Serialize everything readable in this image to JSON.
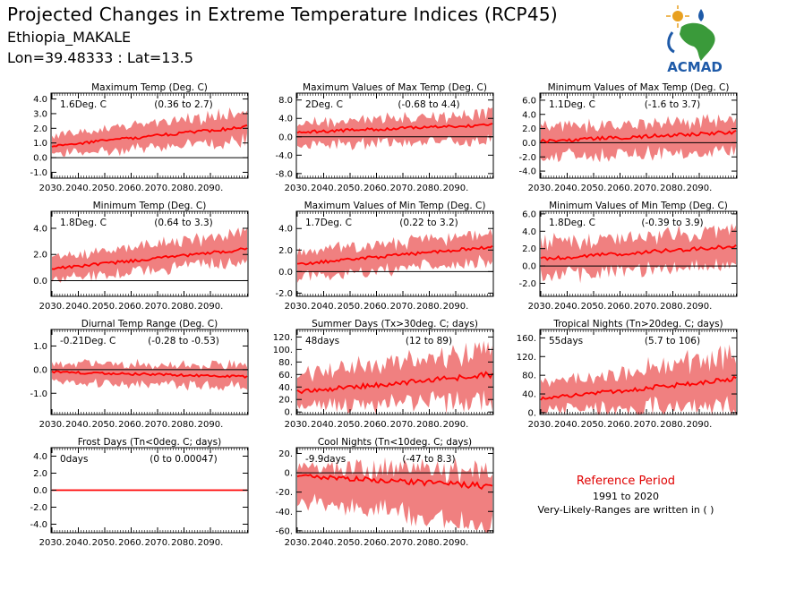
{
  "header": {
    "title": "Projected Changes in Extreme Temperature Indices (RCP45)",
    "location": "Ethiopia_MAKALE",
    "coordinates": "Lon=39.48333 : Lat=13.5"
  },
  "logo": {
    "text": "ACMAD",
    "icon": "africa-map-logo-icon"
  },
  "reference": {
    "title": "Reference Period",
    "years": "1991 to 2020",
    "note": "Very-Likely-Ranges are written in ( )"
  },
  "colors": {
    "band": "#f08080",
    "line": "#ff0000",
    "logo_blue": "#1e5aa8",
    "logo_green": "#3a9a3a",
    "logo_gold": "#e8a020"
  },
  "chart_data": [
    {
      "type": "area",
      "title": "Maximum Temp (Deg. C)",
      "stat": "1.6Deg. C",
      "range_text": "(0.36 to 2.7)",
      "x_ticks": [
        "2030.",
        "2040.",
        "2050.",
        "2060.",
        "2070.",
        "2080.",
        "2090."
      ],
      "y_ticks": [
        "4.0",
        "3.0",
        "2.0",
        "1.0",
        "0.0",
        "-1.0"
      ],
      "ylim": [
        -1.4,
        4.4
      ],
      "zero_line": 0,
      "median_start": 0.8,
      "median_end": 2.1,
      "low_start": 0.2,
      "low_end": 1.2,
      "high_start": 1.5,
      "high_end": 3.1
    },
    {
      "type": "area",
      "title": "Maximum Values of Max Temp (Deg. C)",
      "stat": "2Deg. C",
      "range_text": "(-0.68 to 4.4)",
      "x_ticks": [
        "2030.",
        "2040.",
        "2050.",
        "2060.",
        "2070.",
        "2080.",
        "2090."
      ],
      "y_ticks": [
        "8.0",
        "4.0",
        "0.0",
        "-4.0",
        "-8.0"
      ],
      "ylim": [
        -9,
        9.5
      ],
      "zero_line": 0,
      "median_start": 1.0,
      "median_end": 2.6,
      "low_start": -2.0,
      "low_end": -0.5,
      "high_start": 3.0,
      "high_end": 5.0
    },
    {
      "type": "area",
      "title": "Minimum Values of Max Temp (Deg. C)",
      "stat": "1.1Deg. C",
      "range_text": "(-1.6 to 3.7)",
      "x_ticks": [
        "2030.",
        "2040.",
        "2050.",
        "2060.",
        "2070.",
        "2080.",
        "2090."
      ],
      "y_ticks": [
        "6.0",
        "4.0",
        "2.0",
        "0.0",
        "-2.0",
        "-4.0"
      ],
      "ylim": [
        -5,
        7
      ],
      "zero_line": 0,
      "median_start": 0.2,
      "median_end": 1.5,
      "low_start": -2.0,
      "low_end": -1.0,
      "high_start": 2.0,
      "high_end": 3.5
    },
    {
      "type": "area",
      "title": "Minimum Temp (Deg. C)",
      "stat": "1.8Deg. C",
      "range_text": "(0.64 to 3.3)",
      "x_ticks": [
        "2030.",
        "2040.",
        "2050.",
        "2060.",
        "2070.",
        "2080.",
        "2090."
      ],
      "y_ticks": [
        "4.0",
        "2.0",
        "0.0"
      ],
      "ylim": [
        -1.2,
        5.3
      ],
      "zero_line": 0,
      "median_start": 0.9,
      "median_end": 2.4,
      "low_start": 0.1,
      "low_end": 1.5,
      "high_start": 1.8,
      "high_end": 3.6
    },
    {
      "type": "area",
      "title": "Maximum Values of Min Temp (Deg. C)",
      "stat": "1.7Deg. C",
      "range_text": "(0.22 to 3.2)",
      "x_ticks": [
        "2030.",
        "2040.",
        "2050.",
        "2060.",
        "2070.",
        "2080.",
        "2090."
      ],
      "y_ticks": [
        "4.0",
        "2.0",
        "0.0",
        "-2.0"
      ],
      "ylim": [
        -2.3,
        5.6
      ],
      "zero_line": 0,
      "median_start": 0.7,
      "median_end": 2.3,
      "low_start": -0.6,
      "low_end": 1.0,
      "high_start": 1.8,
      "high_end": 3.5
    },
    {
      "type": "area",
      "title": "Minimum Values of Min Temp (Deg. C)",
      "stat": "1.8Deg. C",
      "range_text": "(-0.39 to 3.9)",
      "x_ticks": [
        "2030.",
        "2040.",
        "2050.",
        "2060.",
        "2070.",
        "2080.",
        "2090."
      ],
      "y_ticks": [
        "6.0",
        "4.0",
        "2.0",
        "0.0",
        "-2.0"
      ],
      "ylim": [
        -3.5,
        6.3
      ],
      "zero_line": 0,
      "median_start": 0.8,
      "median_end": 2.3,
      "low_start": -1.2,
      "low_end": 0.5,
      "high_start": 2.6,
      "high_end": 4.2
    },
    {
      "type": "area",
      "title": "Diurnal Temp Range (Deg. C)",
      "stat": "-0.21Deg. C",
      "range_text": "(-0.28 to -0.53)",
      "x_ticks": [
        "2030.",
        "2040.",
        "2050.",
        "2060.",
        "2070.",
        "2080.",
        "2090."
      ],
      "y_ticks": [
        "1.0",
        "0.0",
        "-1.0"
      ],
      "ylim": [
        -1.9,
        1.7
      ],
      "zero_line": 0,
      "median_start": -0.1,
      "median_end": -0.3,
      "low_start": -0.5,
      "low_end": -0.7,
      "high_start": 0.3,
      "high_end": 0.2
    },
    {
      "type": "area",
      "title": "Summer Days (Tx>30deg. C; days)",
      "stat": "48days",
      "range_text": "(12 to 89)",
      "x_ticks": [
        "2030.",
        "2040.",
        "2050.",
        "2060.",
        "2070.",
        "2080.",
        "2090."
      ],
      "y_ticks": [
        "120.",
        "100.",
        "80.",
        "60.",
        "40.",
        "20.",
        "0."
      ],
      "ylim": [
        -4,
        132
      ],
      "zero_line": null,
      "median_start": 32,
      "median_end": 60,
      "low_start": 8,
      "low_end": 20,
      "high_start": 60,
      "high_end": 100
    },
    {
      "type": "area",
      "title": "Tropical Nights (Tn>20deg. C; days)",
      "stat": "55days",
      "range_text": "(5.7 to 106)",
      "x_ticks": [
        "2030.",
        "2040.",
        "2050.",
        "2060.",
        "2070.",
        "2080.",
        "2090."
      ],
      "y_ticks": [
        "160.",
        "120.",
        "80.",
        "40.",
        "0."
      ],
      "ylim": [
        -4,
        178
      ],
      "zero_line": null,
      "median_start": 30,
      "median_end": 72,
      "low_start": 5,
      "low_end": 15,
      "high_start": 60,
      "high_end": 125
    },
    {
      "type": "area",
      "title": "Frost Days (Tn<0deg. C; days)",
      "stat": "0days",
      "range_text": "(0 to 0.00047)",
      "x_ticks": [
        "2030.",
        "2040.",
        "2050.",
        "2060.",
        "2070.",
        "2080.",
        "2090."
      ],
      "y_ticks": [
        "4.0",
        "2.0",
        "0.0",
        "-2.0",
        "-4.0"
      ],
      "ylim": [
        -5,
        5
      ],
      "zero_line": 0,
      "median_start": 0,
      "median_end": 0,
      "low_start": 0,
      "low_end": 0,
      "high_start": 0,
      "high_end": 0
    },
    {
      "type": "area",
      "title": "Cool Nights (Tn<10deg. C; days)",
      "stat": "-9.9days",
      "range_text": "(-47 to 8.3)",
      "x_ticks": [
        "2030.",
        "2040.",
        "2050.",
        "2060.",
        "2070.",
        "2080.",
        "2090."
      ],
      "y_ticks": [
        "20.",
        "0.",
        "-20.",
        "-40.",
        "-60."
      ],
      "ylim": [
        -62,
        26
      ],
      "zero_line": 0,
      "median_start": -3,
      "median_end": -14,
      "low_start": -30,
      "low_end": -55,
      "high_start": 5,
      "high_end": 2
    }
  ]
}
